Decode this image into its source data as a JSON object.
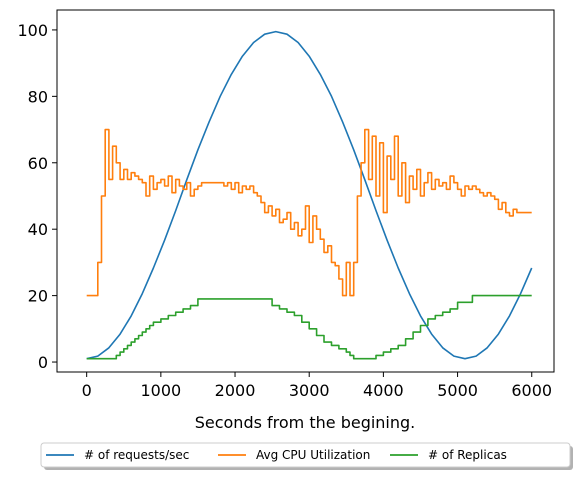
{
  "chart_data": {
    "type": "line",
    "xlabel": "Seconds from the begining.",
    "ylabel": "",
    "xlim": [
      -400,
      6300
    ],
    "ylim": [
      -3,
      106
    ],
    "xticks": [
      0,
      1000,
      2000,
      3000,
      4000,
      5000,
      6000
    ],
    "yticks": [
      0,
      20,
      40,
      60,
      80,
      100
    ],
    "grid": false,
    "legend": {
      "placement": "below",
      "columns": 3
    },
    "series": [
      {
        "name": "# of requests/sec",
        "color": "#1f77b4",
        "style": "smooth",
        "x": [
          0,
          150,
          300,
          450,
          600,
          750,
          900,
          1050,
          1200,
          1350,
          1500,
          1650,
          1800,
          1950,
          2100,
          2250,
          2400,
          2550,
          2700,
          2850,
          3000,
          3150,
          3300,
          3450,
          3600,
          3750,
          3900,
          4050,
          4200,
          4350,
          4500,
          4650,
          4800,
          4950,
          5100,
          5250,
          5400,
          5550,
          5700,
          5850,
          6000
        ],
        "values": [
          1,
          1.8,
          4.3,
          8.4,
          13.9,
          20.6,
          28.3,
          36.7,
          45.6,
          54.9,
          63.9,
          72.3,
          80.0,
          86.6,
          92.1,
          96.2,
          98.7,
          99.5,
          98.7,
          96.2,
          92.1,
          86.6,
          80.0,
          72.3,
          63.9,
          54.9,
          45.6,
          36.7,
          28.3,
          20.6,
          13.9,
          8.4,
          4.3,
          1.8,
          1,
          1.8,
          4.3,
          8.4,
          13.9,
          20.6,
          28.3
        ]
      },
      {
        "name": "Avg CPU Utilization",
        "color": "#ff7f0e",
        "style": "step",
        "x": [
          0,
          150,
          200,
          250,
          300,
          350,
          400,
          450,
          500,
          550,
          600,
          650,
          700,
          750,
          800,
          850,
          900,
          950,
          1000,
          1050,
          1100,
          1150,
          1200,
          1250,
          1300,
          1350,
          1400,
          1450,
          1500,
          1550,
          1600,
          1650,
          1700,
          1750,
          1800,
          1850,
          1900,
          1950,
          2000,
          2050,
          2100,
          2150,
          2200,
          2250,
          2300,
          2350,
          2400,
          2450,
          2500,
          2550,
          2600,
          2650,
          2700,
          2750,
          2800,
          2850,
          2900,
          2950,
          3000,
          3050,
          3100,
          3150,
          3200,
          3250,
          3300,
          3350,
          3400,
          3450,
          3500,
          3550,
          3600,
          3650,
          3700,
          3750,
          3800,
          3850,
          3900,
          3950,
          4000,
          4050,
          4100,
          4150,
          4200,
          4250,
          4300,
          4350,
          4400,
          4450,
          4500,
          4550,
          4600,
          4650,
          4700,
          4750,
          4800,
          4850,
          4900,
          4950,
          5000,
          5050,
          5100,
          5150,
          5200,
          5250,
          5300,
          5350,
          5400,
          5450,
          5500,
          5550,
          5600,
          5650,
          5700,
          5750,
          5800,
          5850,
          5900,
          5950,
          6000
        ],
        "values": [
          20,
          30,
          50,
          70,
          55,
          65,
          60,
          55,
          58,
          55,
          57,
          56,
          55,
          54,
          50,
          56,
          52,
          54,
          55,
          53,
          56,
          51,
          55,
          53,
          52,
          54,
          50,
          52,
          53,
          54,
          54,
          54,
          54,
          54,
          54,
          53,
          54,
          52,
          54,
          51,
          53,
          52,
          53,
          51,
          50,
          48,
          45,
          47,
          44,
          46,
          42,
          43,
          45,
          40,
          42,
          38,
          40,
          47,
          36,
          44,
          40,
          37,
          33,
          35,
          30,
          29,
          25,
          20,
          30,
          20,
          30,
          50,
          60,
          70,
          55,
          68,
          50,
          66,
          45,
          62,
          55,
          68,
          50,
          60,
          48,
          56,
          52,
          58,
          50,
          54,
          57,
          52,
          55,
          53,
          54,
          52,
          56,
          54,
          52,
          50,
          53,
          52,
          53,
          52,
          51,
          50,
          51,
          50,
          49,
          46,
          48,
          45,
          44,
          46,
          45,
          45,
          45,
          45,
          45
        ]
      },
      {
        "name": "# of Replicas",
        "color": "#2ca02c",
        "style": "step",
        "x": [
          0,
          100,
          200,
          300,
          400,
          450,
          500,
          550,
          600,
          650,
          700,
          750,
          800,
          850,
          900,
          950,
          1000,
          1100,
          1200,
          1300,
          1400,
          1500,
          1600,
          1700,
          1800,
          1900,
          2000,
          2100,
          2200,
          2300,
          2400,
          2500,
          2600,
          2700,
          2800,
          2900,
          3000,
          3100,
          3200,
          3300,
          3400,
          3500,
          3550,
          3600,
          3700,
          3800,
          3900,
          4000,
          4100,
          4200,
          4300,
          4400,
          4500,
          4600,
          4700,
          4800,
          4900,
          5000,
          5100,
          5200,
          5300,
          5400,
          5500,
          5600,
          5700,
          5800,
          5900,
          6000
        ],
        "values": [
          1,
          1,
          1,
          1,
          2,
          3,
          4,
          5,
          6,
          7,
          8,
          9,
          10,
          11,
          12,
          12,
          13,
          14,
          15,
          16,
          17,
          19,
          19,
          19,
          19,
          19,
          19,
          19,
          19,
          19,
          19,
          17,
          16,
          15,
          14,
          12,
          10,
          8,
          6,
          5,
          4,
          3,
          2,
          1,
          1,
          1,
          2,
          3,
          4,
          5,
          7,
          9,
          11,
          13,
          14,
          15,
          16,
          18,
          18,
          20,
          20,
          20,
          20,
          20,
          20,
          20,
          20,
          20
        ]
      }
    ]
  }
}
